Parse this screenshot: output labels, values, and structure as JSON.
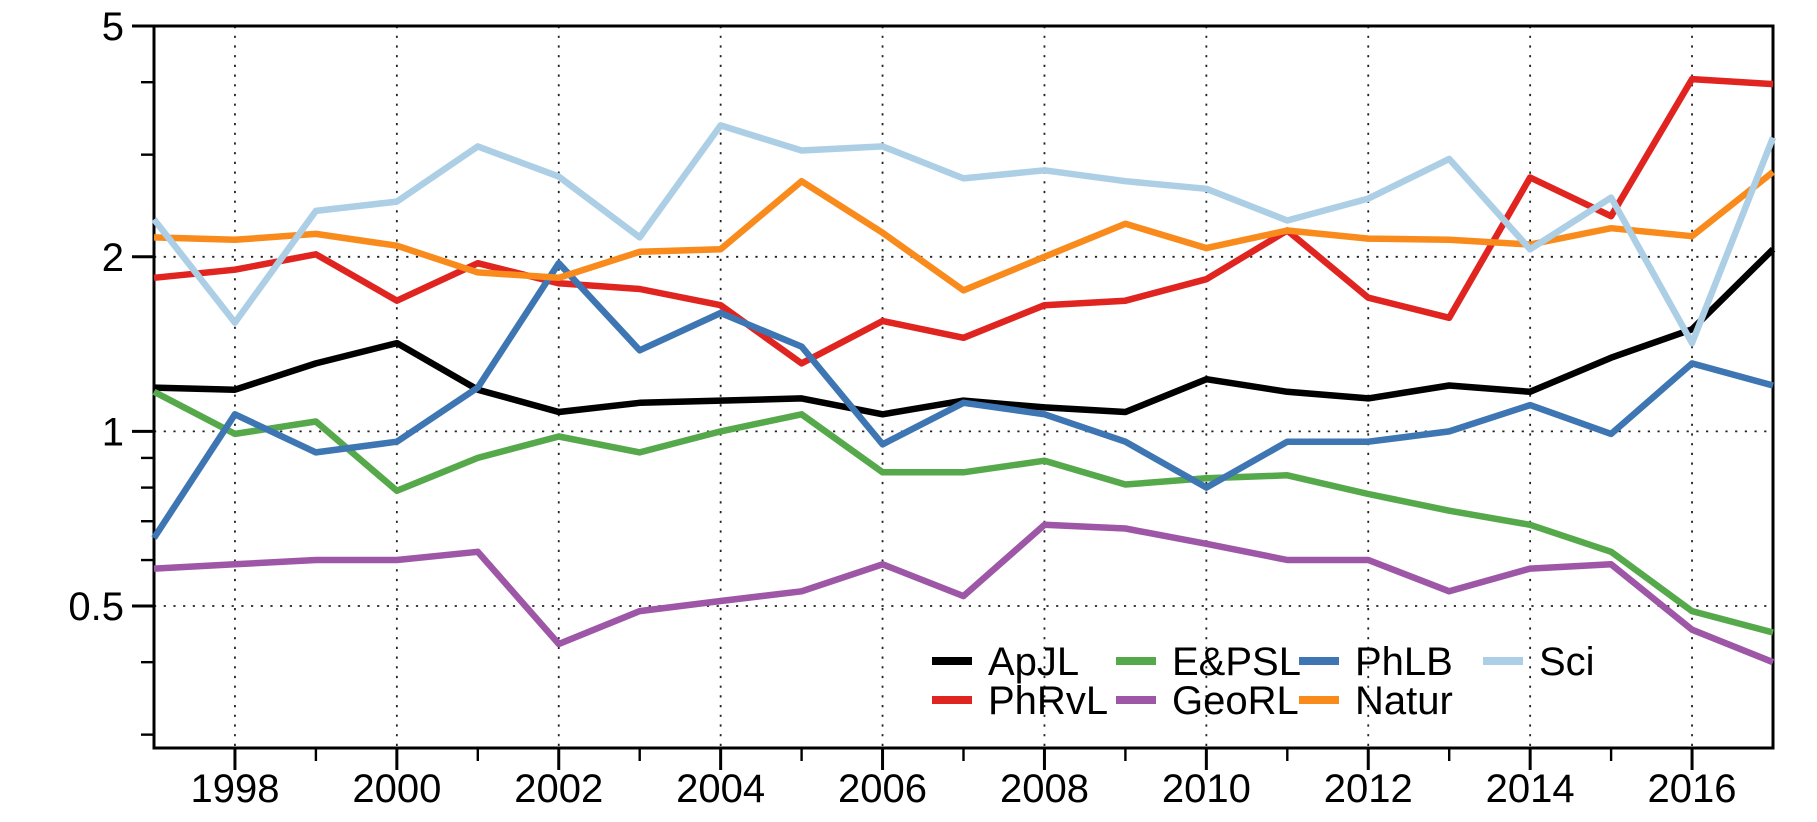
{
  "chart_data": {
    "type": "line",
    "title": "",
    "xlabel": "",
    "ylabel": "",
    "y_scale": "log",
    "xlim": [
      1997,
      2017
    ],
    "ylim": [
      0.2845,
      5
    ],
    "grid": "dotted",
    "x": [
      1997,
      1998,
      1999,
      2000,
      2001,
      2002,
      2003,
      2004,
      2005,
      2006,
      2007,
      2008,
      2009,
      2010,
      2011,
      2012,
      2013,
      2014,
      2015,
      2016,
      2017
    ],
    "series": [
      {
        "name": "ApJL",
        "color": "#000000",
        "values": [
          1.19,
          1.18,
          1.31,
          1.42,
          1.18,
          1.08,
          1.12,
          1.13,
          1.14,
          1.07,
          1.13,
          1.1,
          1.08,
          1.23,
          1.17,
          1.14,
          1.2,
          1.17,
          1.34,
          1.5,
          2.06
        ]
      },
      {
        "name": "PhRvL",
        "color": "#e02420",
        "values": [
          1.84,
          1.9,
          2.02,
          1.68,
          1.95,
          1.8,
          1.76,
          1.65,
          1.31,
          1.55,
          1.45,
          1.65,
          1.68,
          1.83,
          2.22,
          1.7,
          1.57,
          2.74,
          2.35,
          4.05,
          3.97
        ]
      },
      {
        "name": "E&PSL",
        "color": "#56a94b",
        "values": [
          1.17,
          0.99,
          1.04,
          0.79,
          0.9,
          0.98,
          0.92,
          1.0,
          1.07,
          0.85,
          0.85,
          0.89,
          0.81,
          0.83,
          0.84,
          0.78,
          0.73,
          0.69,
          0.62,
          0.49,
          0.45
        ]
      },
      {
        "name": "GeoRL",
        "color": "#9d57a6",
        "values": [
          0.58,
          0.59,
          0.6,
          0.6,
          0.62,
          0.43,
          0.49,
          0.51,
          0.53,
          0.59,
          0.52,
          0.69,
          0.68,
          0.64,
          0.6,
          0.6,
          0.53,
          0.58,
          0.59,
          0.455,
          0.4
        ]
      },
      {
        "name": "PhLB",
        "color": "#3d76b2",
        "values": [
          0.655,
          1.07,
          0.92,
          0.96,
          1.19,
          1.95,
          1.38,
          1.6,
          1.4,
          0.95,
          1.12,
          1.07,
          0.96,
          0.8,
          0.96,
          0.96,
          1.0,
          1.11,
          0.99,
          1.31,
          1.2
        ]
      },
      {
        "name": "Natur",
        "color": "#f98b1d",
        "values": [
          2.16,
          2.14,
          2.19,
          2.09,
          1.88,
          1.84,
          2.04,
          2.06,
          2.7,
          2.2,
          1.75,
          2.0,
          2.28,
          2.07,
          2.22,
          2.15,
          2.14,
          2.1,
          2.24,
          2.17,
          2.8
        ]
      },
      {
        "name": "Sci",
        "color": "#accfe6",
        "values": [
          2.32,
          1.54,
          2.4,
          2.49,
          3.1,
          2.75,
          2.16,
          3.37,
          3.05,
          3.1,
          2.73,
          2.82,
          2.7,
          2.62,
          2.31,
          2.52,
          2.95,
          2.06,
          2.53,
          1.42,
          3.21
        ]
      }
    ],
    "x_major_ticks": [
      1998,
      2000,
      2002,
      2004,
      2006,
      2008,
      2010,
      2012,
      2014,
      2016
    ],
    "x_major_labels": [
      "1998",
      "2000",
      "2002",
      "2004",
      "2006",
      "2008",
      "2010",
      "2012",
      "2014",
      "2016"
    ],
    "x_minor_ticks": [
      1999,
      2001,
      2003,
      2005,
      2007,
      2009,
      2011,
      2013,
      2015
    ],
    "y_major_ticks": [
      5,
      2,
      1,
      0.5
    ],
    "y_major_labels": [
      "5",
      "2",
      "1",
      "0.5"
    ],
    "y_minor_ticks": [
      4,
      3,
      0.9,
      0.8,
      0.7,
      0.6,
      0.4,
      0.3
    ],
    "grid_x": [
      1998,
      2000,
      2002,
      2004,
      2006,
      2008,
      2010,
      2012,
      2014,
      2016
    ],
    "grid_y": [
      2,
      1,
      0.5
    ],
    "legend": {
      "position": "inside-bottom-right",
      "rows": 2,
      "entries": [
        "ApJL",
        "PhRvL",
        "E&PSL",
        "GeoRL",
        "PhLB",
        "Natur",
        "Sci"
      ]
    }
  }
}
